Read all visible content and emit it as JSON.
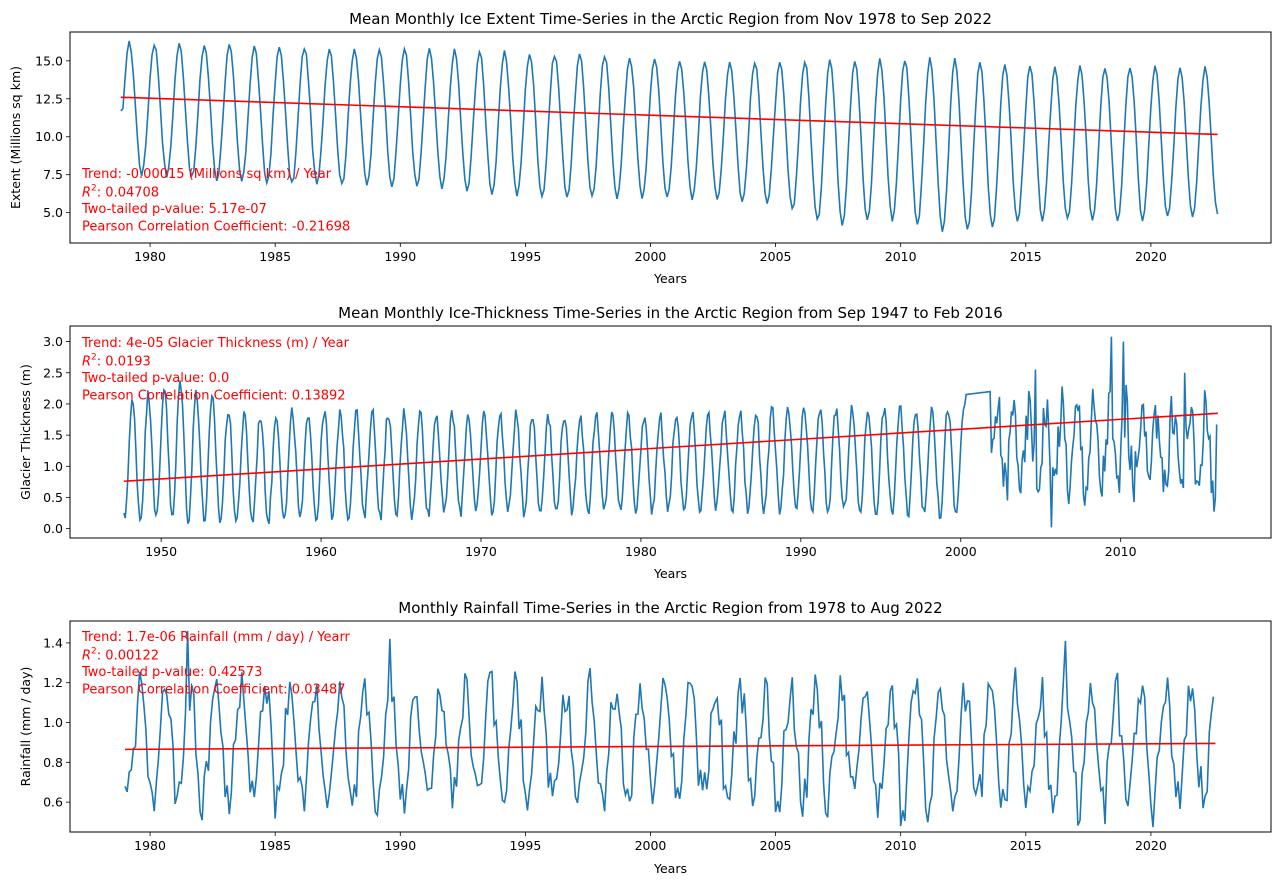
{
  "chart_data": [
    {
      "type": "line",
      "title": "Mean Monthly Ice Extent Time-Series in the Arctic Region from Nov 1978 to Sep 2022",
      "xlabel": "Years",
      "ylabel": "Extent (Millions sq km)",
      "xlim": [
        1976.8,
        2024.8
      ],
      "ylim": [
        3.0,
        16.9
      ],
      "xticks": [
        1980,
        1985,
        1990,
        1995,
        2000,
        2005,
        2010,
        2015,
        2020
      ],
      "yticks": [
        5.0,
        7.5,
        10.0,
        12.5,
        15.0
      ],
      "ytick_labels": [
        "5.0",
        "7.5",
        "10.0",
        "12.5",
        "15.0"
      ],
      "series": [
        {
          "color": "#1f77b4",
          "x_start": 1978.83,
          "x_end": 2022.67,
          "envelope": {
            "years": [
              1979,
              1985,
              1990,
              1995,
              2000,
              2005,
              2007,
              2010,
              2012,
              2015,
              2020,
              2022
            ],
            "max": [
              16.2,
              15.9,
              15.8,
              15.5,
              15.2,
              14.8,
              15.1,
              15.1,
              15.1,
              14.6,
              14.6,
              14.6
            ],
            "min": [
              7.6,
              6.9,
              6.8,
              6.1,
              6.0,
              5.6,
              4.2,
              4.6,
              3.6,
              4.5,
              4.5,
              4.9
            ]
          },
          "start_value": 11.7,
          "end_value": 4.9
        },
        {
          "color": "#ff0000",
          "x": [
            1978.83,
            2022.67
          ],
          "y": [
            12.6,
            10.15
          ]
        }
      ],
      "annotations": [
        {
          "label": "trend",
          "text": "Trend: -0.00015 (Millions sq km) / Year"
        },
        {
          "label": "r2",
          "prefix": "R",
          "sup": "2",
          "text": ": 0.04708"
        },
        {
          "label": "pvalue",
          "text": "Two-tailed p-value: 5.17e-07"
        },
        {
          "label": "pearson",
          "text": "Pearson Correlation Coefficient: -0.21698"
        }
      ]
    },
    {
      "type": "line",
      "title": "Mean Monthly Ice-Thickness Time-Series in the Arctic Region from Sep 1947 to Feb 2016",
      "xlabel": "Years",
      "ylabel": "Glacier Thickness (m)",
      "xlim": [
        1944.3,
        2019.4
      ],
      "ylim": [
        -0.15,
        3.25
      ],
      "xticks": [
        1950,
        1960,
        1970,
        1980,
        1990,
        2000,
        2010
      ],
      "yticks": [
        0.0,
        0.5,
        1.0,
        1.5,
        2.0,
        2.5,
        3.0
      ],
      "ytick_labels": [
        "0.0",
        "0.5",
        "1.0",
        "1.5",
        "2.0",
        "2.5",
        "3.0"
      ],
      "series": [
        {
          "color": "#1f77b4",
          "x_start": 1947.67,
          "x_end": 2016.08,
          "envelope": {
            "years": [
              1948,
              1951,
              1955,
              1960,
              1970,
              1980,
              1990,
              1999
            ],
            "max": [
              2.0,
              2.4,
              1.8,
              1.9,
              1.85,
              1.8,
              1.9,
              1.95
            ],
            "min": [
              0.15,
              0.15,
              0.1,
              0.15,
              0.25,
              0.3,
              0.3,
              0.2
            ]
          },
          "plateau": {
            "x0": 2000.3,
            "x1": 2001.9,
            "y0": 2.15,
            "y1": 2.2
          },
          "noisy": {
            "x0": 2002.0,
            "x1": 2016.08,
            "base": 1.3,
            "amp": 0.6
          },
          "spikes": [
            [
              2004.7,
              2.55
            ],
            [
              2005.7,
              0.02
            ],
            [
              2009.4,
              3.08
            ],
            [
              2010.2,
              3.0
            ],
            [
              2014.0,
              2.5
            ]
          ],
          "end_value": 1.67
        },
        {
          "color": "#ff0000",
          "x": [
            1947.67,
            2016.08
          ],
          "y": [
            0.76,
            1.85
          ]
        }
      ],
      "annotations": [
        {
          "label": "trend",
          "text": "Trend: 4e-05 Glacier Thickness (m) / Year"
        },
        {
          "label": "r2",
          "prefix": "R",
          "sup": "2",
          "text": ": 0.0193"
        },
        {
          "label": "pvalue",
          "text": "Two-tailed p-value: 0.0"
        },
        {
          "label": "pearson",
          "text": "Pearson Correlation Coefficient: 0.13892"
        }
      ]
    },
    {
      "type": "line",
      "title": "Monthly Rainfall Time-Series in the Arctic Region from 1978 to Aug 2022",
      "xlabel": "Years",
      "ylabel": "Rainfall (mm / day)",
      "xlim": [
        1976.8,
        2024.8
      ],
      "ylim": [
        0.45,
        1.51
      ],
      "xticks": [
        1980,
        1985,
        1990,
        1995,
        2000,
        2005,
        2010,
        2015,
        2020
      ],
      "yticks": [
        0.6,
        0.8,
        1.0,
        1.2,
        1.4
      ],
      "ytick_labels": [
        "0.6",
        "0.8",
        "1.0",
        "1.2",
        "1.4"
      ],
      "series": [
        {
          "color": "#1f77b4",
          "x_start": 1979.0,
          "x_end": 2022.58,
          "base": 0.88,
          "amp": 0.28,
          "peaks": [
            [
              1981.5,
              1.46
            ],
            [
              1989.6,
              1.42
            ],
            [
              2016.6,
              1.41
            ],
            [
              2010.0,
              0.48
            ],
            [
              2018.2,
              0.49
            ]
          ],
          "end_value": 1.13
        },
        {
          "color": "#ff0000",
          "x": [
            1979.0,
            2022.58
          ],
          "y": [
            0.865,
            0.895
          ]
        }
      ],
      "annotations": [
        {
          "label": "trend",
          "text": "Trend: 1.7e-06 Rainfall (mm / day) / Yearr"
        },
        {
          "label": "r2",
          "prefix": "R",
          "sup": "2",
          "text": ": 0.00122"
        },
        {
          "label": "pvalue",
          "text": "Two-tailed p-value: 0.42573"
        },
        {
          "label": "pearson",
          "text": "Pearson Correlation Coefficient: 0.03487"
        }
      ]
    }
  ]
}
